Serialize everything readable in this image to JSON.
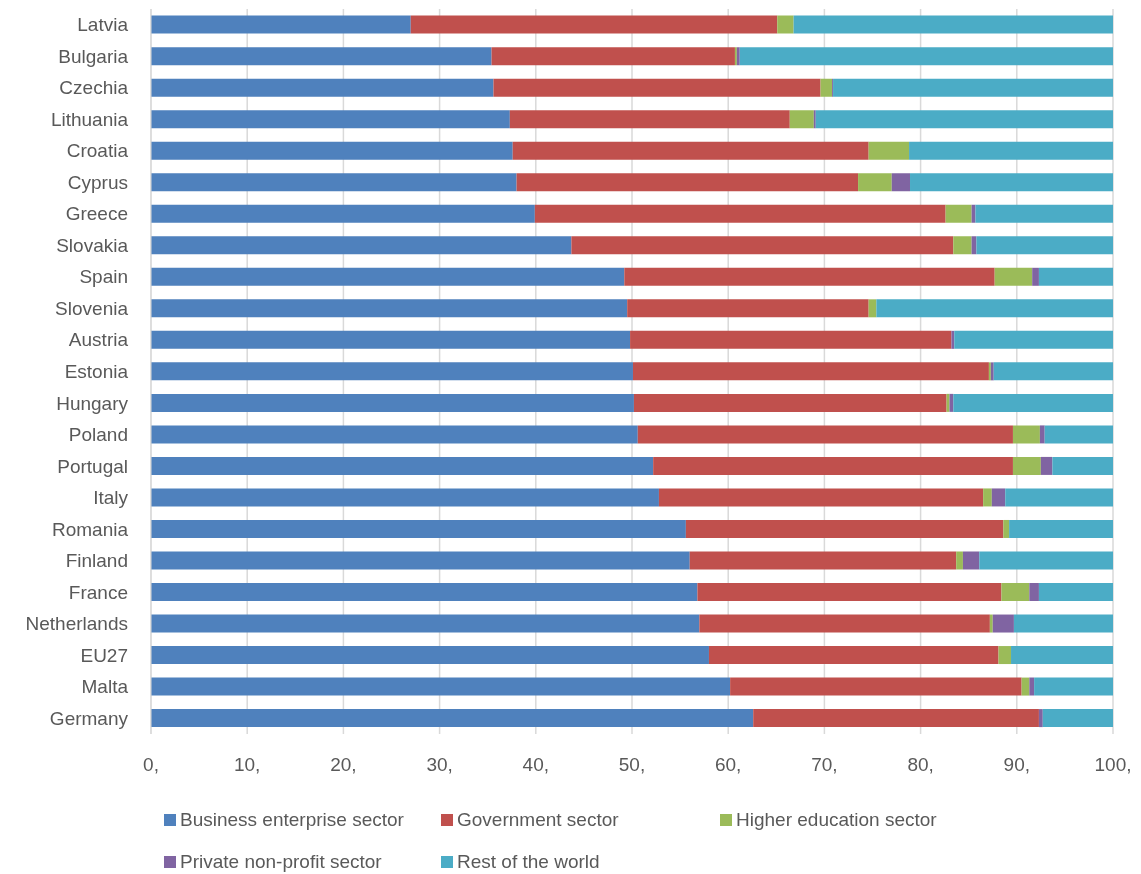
{
  "chart_data": {
    "type": "bar",
    "orientation": "horizontal",
    "stacked": true,
    "categories": [
      "Latvia",
      "Bulgaria",
      "Czechia",
      "Lithuania",
      "Croatia",
      "Cyprus",
      "Greece",
      "Slovakia",
      "Spain",
      "Slovenia",
      "Austria",
      "Estonia",
      "Hungary",
      "Poland",
      "Portugal",
      "Italy",
      "Romania",
      "Finland",
      "France",
      "Netherlands",
      "EU27",
      "Malta",
      "Germany"
    ],
    "series": [
      {
        "name": "Business enterprise sector",
        "color": "#4f81bd",
        "values": [
          27.0,
          35.4,
          35.6,
          37.3,
          37.6,
          38.0,
          39.9,
          43.7,
          49.2,
          49.5,
          49.8,
          50.1,
          50.2,
          50.6,
          52.2,
          52.8,
          55.6,
          56.0,
          56.8,
          57.0,
          58.0,
          60.2,
          62.6
        ]
      },
      {
        "name": "Government sector",
        "color": "#c0504d",
        "values": [
          38.1,
          25.3,
          34.0,
          29.1,
          37.0,
          35.5,
          42.7,
          39.7,
          38.5,
          25.1,
          33.4,
          37.0,
          32.5,
          39.0,
          37.4,
          33.7,
          33.0,
          27.7,
          31.6,
          30.2,
          30.1,
          30.3,
          29.7
        ]
      },
      {
        "name": "Higher education sector",
        "color": "#9bbb59",
        "values": [
          1.7,
          0.2,
          1.2,
          2.5,
          4.2,
          3.5,
          2.7,
          1.9,
          3.9,
          0.8,
          0,
          0.2,
          0.3,
          2.8,
          2.9,
          0.9,
          0.6,
          0.7,
          2.9,
          0.3,
          1.3,
          0.8,
          0
        ]
      },
      {
        "name": "Private non-profit sector",
        "color": "#8064a2",
        "values": [
          0,
          0.3,
          0.1,
          0.2,
          0,
          1.9,
          0.4,
          0.5,
          0.7,
          0,
          0.3,
          0.3,
          0.4,
          0.5,
          1.2,
          1.4,
          0,
          1.7,
          1.0,
          2.2,
          0,
          0.5,
          0.4
        ]
      },
      {
        "name": "Rest of the world",
        "color": "#4bacc6",
        "values": [
          33.2,
          38.8,
          29.1,
          30.9,
          21.2,
          21.1,
          14.3,
          14.2,
          7.7,
          24.6,
          16.5,
          12.4,
          16.6,
          7.1,
          6.3,
          11.2,
          10.8,
          13.9,
          7.7,
          10.3,
          10.6,
          8.2,
          7.3
        ]
      }
    ],
    "xlim": [
      0,
      100
    ],
    "xticks": [
      {
        "value": 0,
        "label": "0,"
      },
      {
        "value": 10,
        "label": "10,"
      },
      {
        "value": 20,
        "label": "20,"
      },
      {
        "value": 30,
        "label": "30,"
      },
      {
        "value": 40,
        "label": "40,"
      },
      {
        "value": 50,
        "label": "50,"
      },
      {
        "value": 60,
        "label": "60,"
      },
      {
        "value": 70,
        "label": "70,"
      },
      {
        "value": 80,
        "label": "80,"
      },
      {
        "value": 90,
        "label": "90,"
      },
      {
        "value": 100,
        "label": "100,"
      }
    ],
    "grid": "x",
    "legend": "bottom"
  }
}
